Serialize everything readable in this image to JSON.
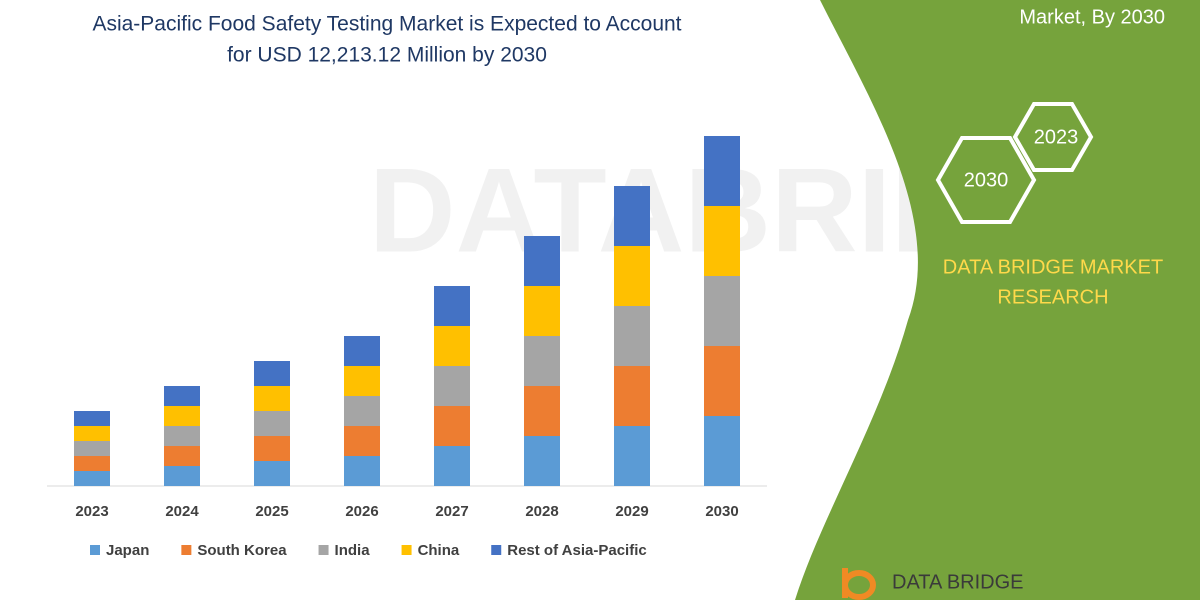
{
  "chart_data": {
    "type": "stacked-bar",
    "title_lines": [
      "Asia-Pacific Food Safety Testing Market is Expected to Account",
      "for USD 12,213.12 Million by 2030"
    ],
    "categories": [
      "2023",
      "2024",
      "2025",
      "2026",
      "2027",
      "2028",
      "2029",
      "2030"
    ],
    "ylim": [
      0,
      360
    ],
    "series": [
      {
        "name": "Japan",
        "color": "#5b9bd5",
        "values": [
          15,
          20,
          25,
          30,
          40,
          50,
          60,
          70
        ]
      },
      {
        "name": "South Korea",
        "color": "#ed7d31",
        "values": [
          15,
          20,
          25,
          30,
          40,
          50,
          60,
          70
        ]
      },
      {
        "name": "India",
        "color": "#a5a5a5",
        "values": [
          15,
          20,
          25,
          30,
          40,
          50,
          60,
          70
        ]
      },
      {
        "name": "China",
        "color": "#ffc000",
        "values": [
          15,
          20,
          25,
          30,
          40,
          50,
          60,
          70
        ]
      },
      {
        "name": "Rest of Asia-Pacific",
        "color": "#4472c4",
        "values": [
          15,
          20,
          25,
          30,
          40,
          50,
          60,
          70
        ]
      }
    ],
    "legend": "bottom"
  },
  "panel": {
    "heading": "Market, By 2030",
    "hexagons": [
      "2023",
      "2030"
    ],
    "brand_lines": [
      "DATA BRIDGE MARKET",
      "RESEARCH"
    ],
    "logo": "DATA BRIDGE",
    "watermark": "DATABRIDGE"
  }
}
